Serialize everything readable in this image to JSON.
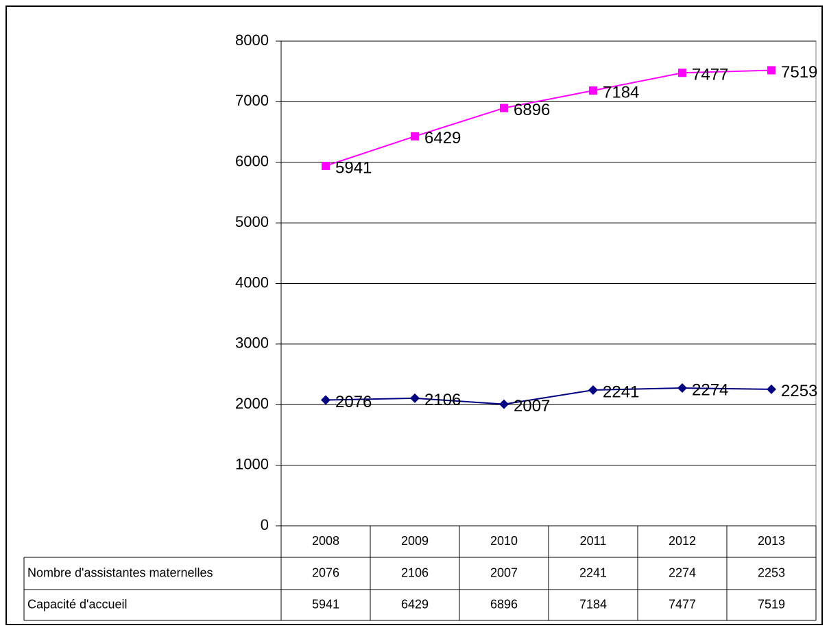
{
  "chart_data": {
    "type": "line",
    "categories": [
      "2008",
      "2009",
      "2010",
      "2011",
      "2012",
      "2013"
    ],
    "series": [
      {
        "name": "Nombre d'assistantes maternelles",
        "color": "#000080",
        "marker": "diamond",
        "values": [
          2076,
          2106,
          2007,
          2241,
          2274,
          2253
        ]
      },
      {
        "name": "Capacité d'accueil",
        "color": "#ff00ff",
        "marker": "square",
        "values": [
          5941,
          6429,
          6896,
          7184,
          7477,
          7519
        ]
      }
    ],
    "ylim": [
      0,
      8000
    ],
    "yticks": [
      0,
      1000,
      2000,
      3000,
      4000,
      5000,
      6000,
      7000,
      8000
    ],
    "grid": true
  }
}
